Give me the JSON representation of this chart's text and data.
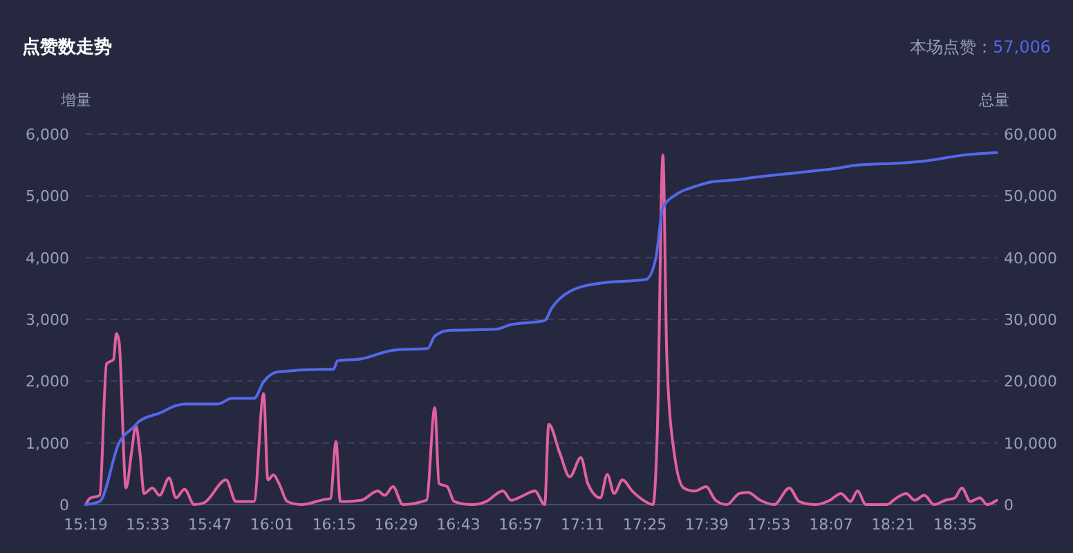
{
  "chart_data": {
    "type": "line",
    "title": "点赞数走势",
    "ylabel": "增量",
    "y2label": "总量",
    "annotations": [
      "本场点赞：",
      "57,006"
    ],
    "xlim": [
      15.3167,
      18.74
    ],
    "xticks": [
      {
        "value": 15.3167,
        "label": "15:19"
      },
      {
        "value": 15.55,
        "label": "15:33"
      },
      {
        "value": 15.7833,
        "label": "15:47"
      },
      {
        "value": 16.0167,
        "label": "16:01"
      },
      {
        "value": 16.25,
        "label": "16:15"
      },
      {
        "value": 16.4833,
        "label": "16:29"
      },
      {
        "value": 16.7167,
        "label": "16:43"
      },
      {
        "value": 16.95,
        "label": "16:57"
      },
      {
        "value": 17.1833,
        "label": "17:11"
      },
      {
        "value": 17.4167,
        "label": "17:25"
      },
      {
        "value": 17.65,
        "label": "17:39"
      },
      {
        "value": 17.8833,
        "label": "17:53"
      },
      {
        "value": 18.1167,
        "label": "18:07"
      },
      {
        "value": 18.35,
        "label": "18:21"
      },
      {
        "value": 18.5833,
        "label": "18:35"
      }
    ],
    "ylim": [
      0,
      6000
    ],
    "yticks": [
      {
        "value": 0,
        "label": "0"
      },
      {
        "value": 1000,
        "label": "1,000"
      },
      {
        "value": 2000,
        "label": "2,000"
      },
      {
        "value": 3000,
        "label": "3,000"
      },
      {
        "value": 4000,
        "label": "4,000"
      },
      {
        "value": 5000,
        "label": "5,000"
      },
      {
        "value": 6000,
        "label": "6,000"
      }
    ],
    "y2lim": [
      0,
      60000
    ],
    "y2ticks": [
      {
        "value": 0,
        "label": "0"
      },
      {
        "value": 10000,
        "label": "10,000"
      },
      {
        "value": 20000,
        "label": "20,000"
      },
      {
        "value": 30000,
        "label": "30,000"
      },
      {
        "value": 40000,
        "label": "40,000"
      },
      {
        "value": 50000,
        "label": "50,000"
      },
      {
        "value": 60000,
        "label": "60,000"
      }
    ],
    "grid": "y",
    "marker": "none",
    "line_style": "solid",
    "series": [
      {
        "color": "#e0619f",
        "x": [
          15.317,
          15.332,
          15.369,
          15.395,
          15.421,
          15.432,
          15.442,
          15.468,
          15.489,
          15.505,
          15.52,
          15.536,
          15.567,
          15.594,
          15.63,
          15.656,
          15.688,
          15.724,
          15.761,
          15.844,
          15.881,
          15.949,
          15.985,
          16.001,
          16.022,
          16.043,
          16.074,
          16.127,
          16.21,
          16.236,
          16.257,
          16.273,
          16.283,
          16.351,
          16.414,
          16.44,
          16.471,
          16.508,
          16.597,
          16.628,
          16.644,
          16.675,
          16.701,
          16.769,
          16.821,
          16.884,
          16.915,
          16.962,
          17.004,
          17.041,
          17.056,
          17.098,
          17.135,
          17.177,
          17.203,
          17.25,
          17.276,
          17.302,
          17.333,
          17.37,
          17.412,
          17.448,
          17.464,
          17.485,
          17.5,
          17.527,
          17.563,
          17.605,
          17.647,
          17.683,
          17.725,
          17.772,
          17.804,
          17.851,
          17.903,
          17.96,
          17.997,
          18.06,
          18.112,
          18.154,
          18.19,
          18.216,
          18.248,
          18.326,
          18.363,
          18.399,
          18.431,
          18.467,
          18.504,
          18.546,
          18.582,
          18.608,
          18.64,
          18.676,
          18.703,
          18.739
        ],
        "values": [
          0,
          100,
          150,
          2280,
          2350,
          2770,
          2640,
          270,
          850,
          1280,
          850,
          180,
          270,
          150,
          430,
          110,
          250,
          0,
          30,
          400,
          50,
          50,
          1800,
          400,
          480,
          340,
          50,
          0,
          80,
          100,
          1020,
          50,
          50,
          70,
          220,
          150,
          290,
          0,
          70,
          1570,
          340,
          290,
          50,
          0,
          50,
          220,
          70,
          150,
          220,
          0,
          1300,
          830,
          450,
          760,
          340,
          110,
          490,
          180,
          400,
          220,
          70,
          0,
          1160,
          5660,
          2350,
          850,
          270,
          220,
          290,
          70,
          0,
          180,
          200,
          70,
          0,
          270,
          50,
          0,
          70,
          180,
          50,
          220,
          0,
          0,
          110,
          180,
          70,
          150,
          0,
          70,
          110,
          270,
          50,
          110,
          0,
          70
        ]
      },
      {
        "color": "#5468e8",
        "axis": "y2",
        "x": [
          15.317,
          15.369,
          15.442,
          15.5,
          15.515,
          15.604,
          15.636,
          15.688,
          15.813,
          15.865,
          15.949,
          15.985,
          16.038,
          16.21,
          16.247,
          16.263,
          16.351,
          16.471,
          16.602,
          16.628,
          16.68,
          16.858,
          16.91,
          17.041,
          17.067,
          17.135,
          17.24,
          17.423,
          17.459,
          17.485,
          17.538,
          17.605,
          17.673,
          17.762,
          17.83,
          17.934,
          18.023,
          18.128,
          18.216,
          18.373,
          18.478,
          18.614,
          18.739
        ],
        "values": [
          0,
          500,
          10000,
          12700,
          13400,
          15000,
          15700,
          16300,
          16300,
          17200,
          17200,
          19900,
          21500,
          21900,
          21900,
          23300,
          23600,
          25000,
          25300,
          27300,
          28200,
          28400,
          29100,
          29800,
          31800,
          34500,
          35800,
          36500,
          40000,
          48100,
          50300,
          51500,
          52300,
          52600,
          53000,
          53500,
          53900,
          54400,
          55000,
          55300,
          55700,
          56600,
          57000
        ]
      }
    ]
  }
}
